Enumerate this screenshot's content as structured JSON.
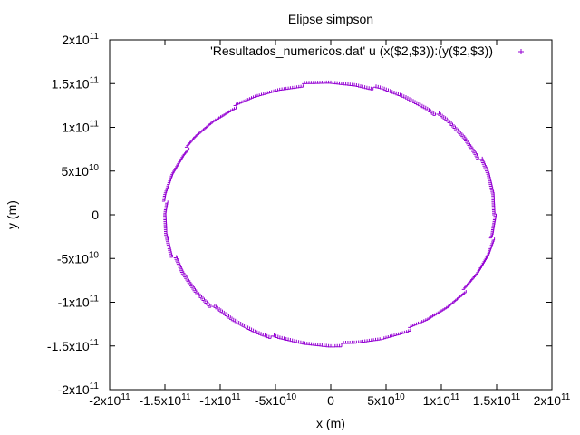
{
  "chart_data": {
    "type": "scatter",
    "title": "Elipse simpson",
    "xlabel": "x (m)",
    "ylabel": "y (m)",
    "xlim": [
      -200000000000,
      200000000000
    ],
    "ylim": [
      -200000000000,
      200000000000
    ],
    "x_ticks": [
      -200000000000,
      -150000000000,
      -100000000000,
      -50000000000,
      0,
      50000000000,
      100000000000,
      150000000000,
      200000000000
    ],
    "y_ticks": [
      -200000000000,
      -150000000000,
      -100000000000,
      -50000000000,
      0,
      50000000000,
      100000000000,
      150000000000,
      200000000000
    ],
    "x_tick_labels": [
      "-2x10^11",
      "-1.5x10^11",
      "-1x10^11",
      "-5x10^10",
      "0",
      "5x10^10",
      "1x10^11",
      "1.5x10^11",
      "2x10^11"
    ],
    "y_tick_labels": [
      "-2x10^11",
      "-1.5x10^11",
      "-1x10^11",
      "-5x10^10",
      "0",
      "5x10^10",
      "1x10^11",
      "1.5x10^11",
      "2x10^11"
    ],
    "grid": false,
    "legend_position": "top-right",
    "series": [
      {
        "name": "'Resultados_numericos.dat' u (x($2,$3)):(y($2,$3))",
        "color": "#9400d3",
        "marker": "+",
        "points": [
          [
            150000000000,
            0
          ],
          [
            148000000000,
            23000000000
          ],
          [
            142500000000,
            46200000000
          ],
          [
            133500000000,
            68000000000
          ],
          [
            121200000000,
            88100000000
          ],
          [
            106000000000,
            106000000000
          ],
          [
            88100000000,
            121300000000
          ],
          [
            68000000000,
            133600000000
          ],
          [
            46300000000,
            142700000000
          ],
          [
            23400000000,
            148100000000
          ],
          [
            0,
            150000000000
          ],
          [
            -23400000000,
            148100000000
          ],
          [
            -46300000000,
            142700000000
          ],
          [
            -68000000000,
            133600000000
          ],
          [
            -88100000000,
            121300000000
          ],
          [
            -106000000000,
            106000000000
          ],
          [
            -121200000000,
            88100000000
          ],
          [
            -133500000000,
            68000000000
          ],
          [
            -142500000000,
            46200000000
          ],
          [
            -148000000000,
            23000000000
          ],
          [
            -150000000000,
            0
          ],
          [
            -148000000000,
            -23000000000
          ],
          [
            -142500000000,
            -46200000000
          ],
          [
            -133500000000,
            -68000000000
          ],
          [
            -121200000000,
            -88100000000
          ],
          [
            -106000000000,
            -106000000000
          ],
          [
            -88100000000,
            -121300000000
          ],
          [
            -68000000000,
            -133600000000
          ],
          [
            -46300000000,
            -142700000000
          ],
          [
            -23400000000,
            -148100000000
          ],
          [
            0,
            -150000000000
          ],
          [
            23400000000,
            -148100000000
          ],
          [
            46300000000,
            -142700000000
          ],
          [
            68000000000,
            -133600000000
          ],
          [
            88100000000,
            -121300000000
          ],
          [
            106000000000,
            -106000000000
          ],
          [
            121200000000,
            -88100000000
          ],
          [
            133500000000,
            -68000000000
          ],
          [
            142500000000,
            -46200000000
          ],
          [
            148000000000,
            -23000000000
          ]
        ]
      }
    ]
  }
}
